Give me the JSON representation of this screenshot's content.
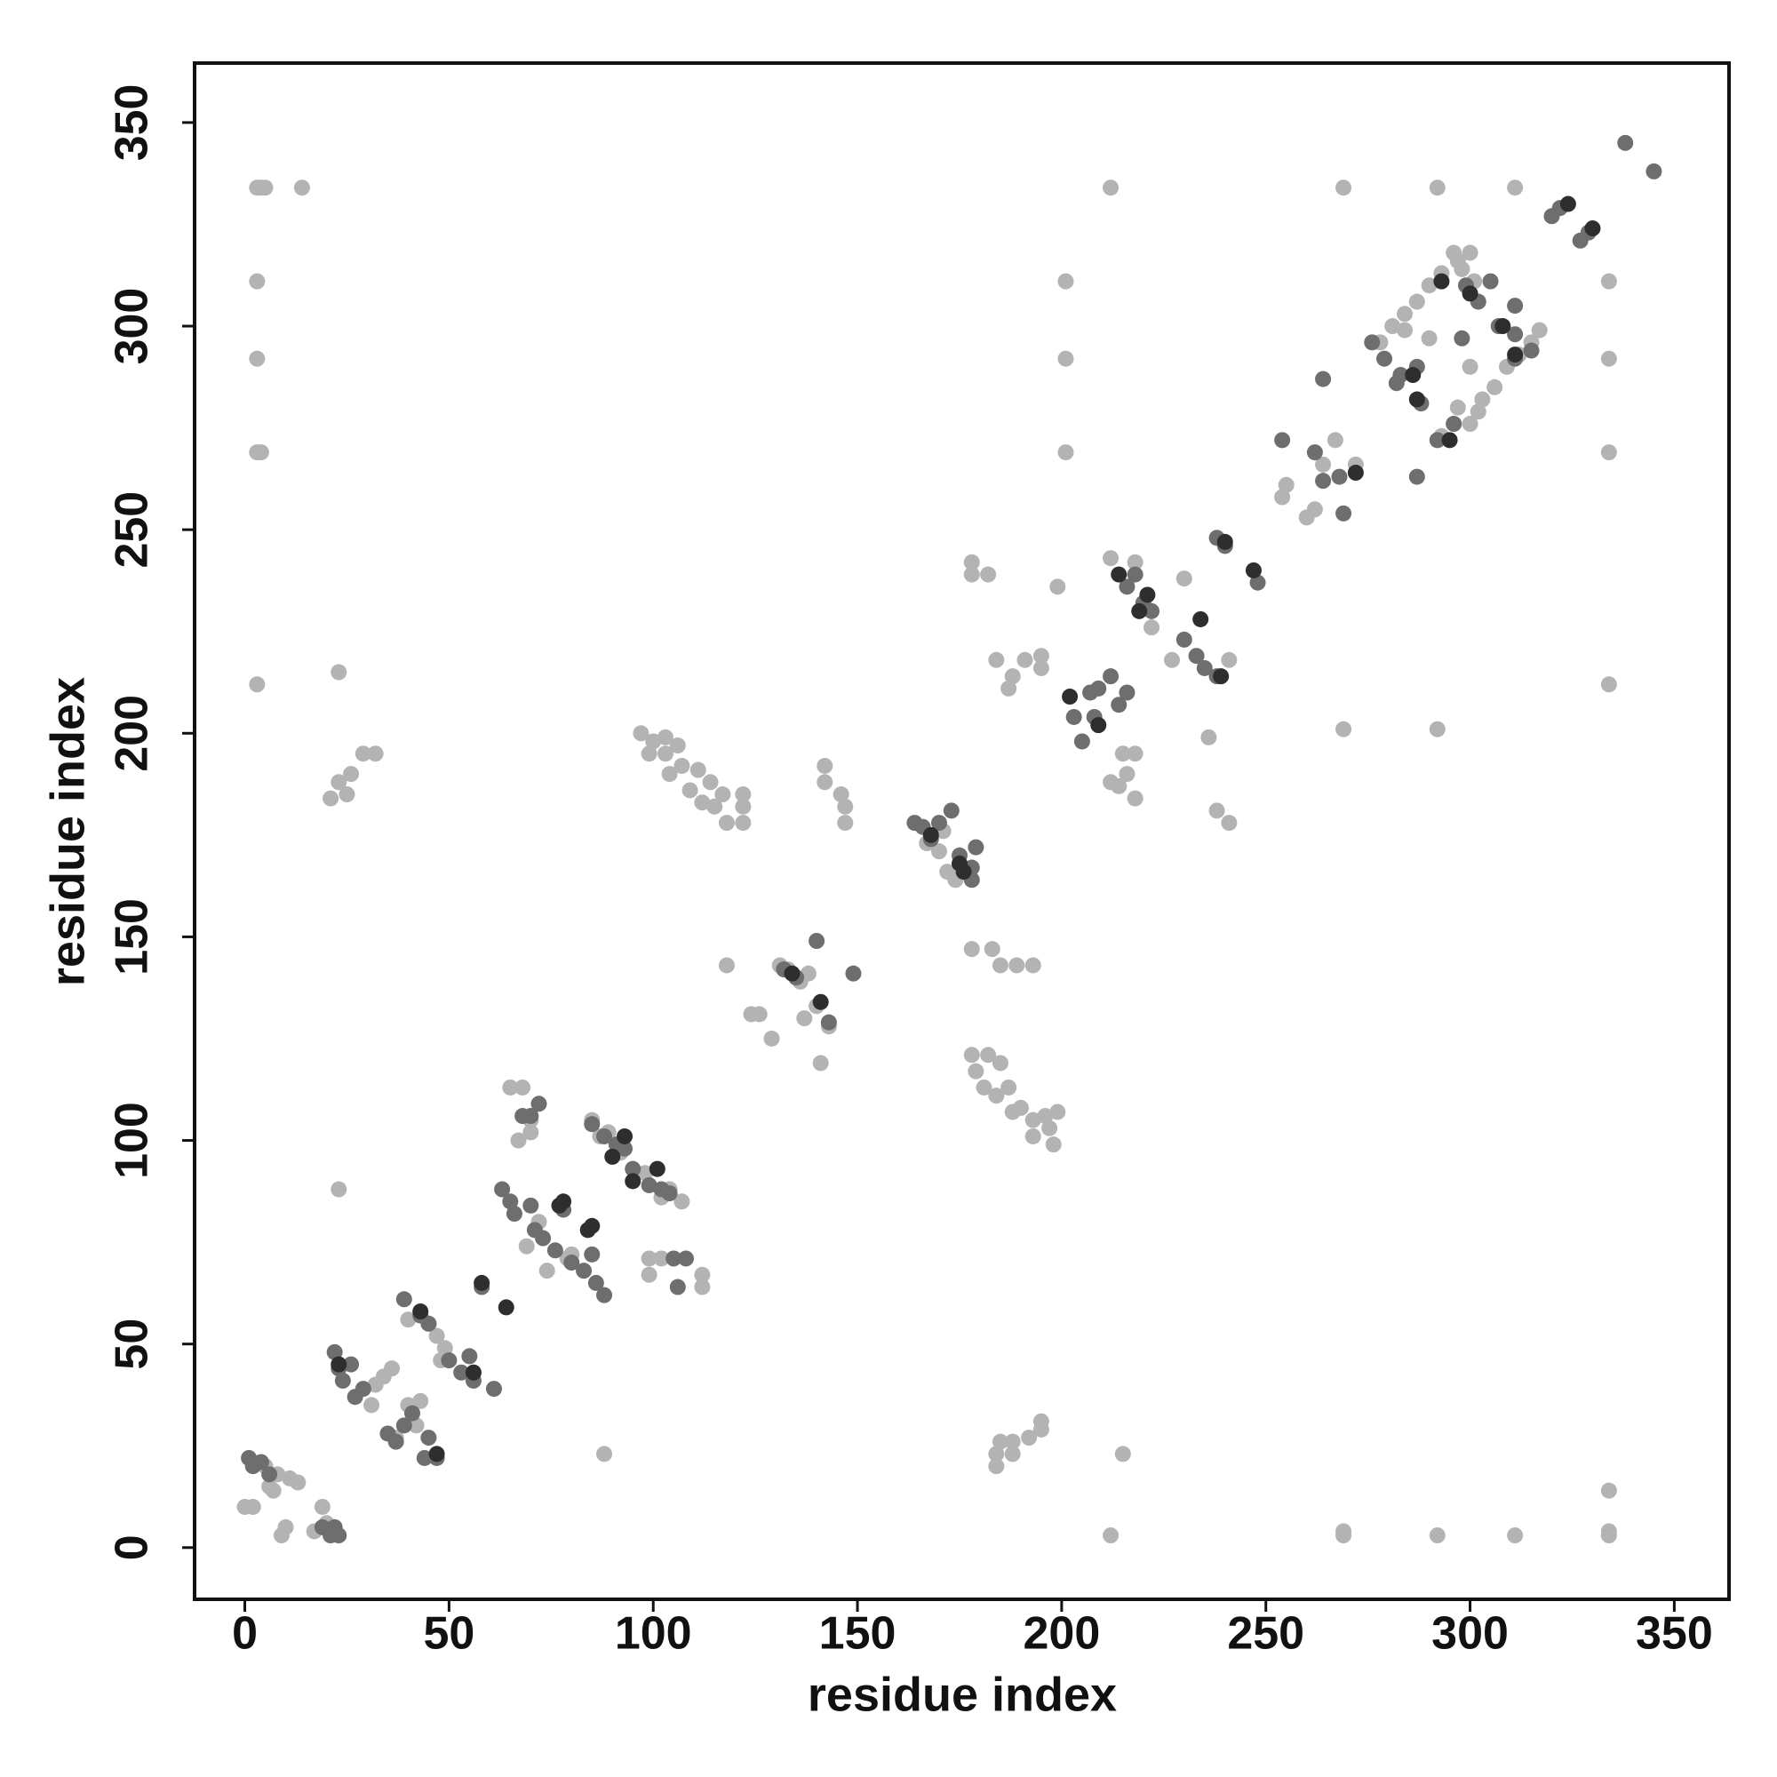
{
  "chart_data": {
    "type": "scatter",
    "x_label": "residue index",
    "y_label": "residue index",
    "xlim": [
      -12.3,
      363.4
    ],
    "ylim": [
      -12.7,
      364.6
    ],
    "xticks": [
      0,
      50,
      100,
      150,
      200,
      250,
      300,
      350
    ],
    "yticks": [
      0,
      50,
      100,
      150,
      200,
      250,
      300,
      350
    ],
    "grid": false,
    "series": [
      {
        "color": "#b3b3b3",
        "x": [
          3,
          4,
          5,
          14,
          3,
          3,
          3,
          4,
          3,
          23,
          23,
          88,
          23,
          21,
          25,
          29,
          32,
          26,
          201,
          201,
          201,
          212,
          269,
          292,
          311,
          334,
          334,
          334,
          334,
          269,
          292,
          334,
          334,
          334,
          311,
          292,
          269,
          269,
          212,
          215,
          184,
          185,
          188,
          192,
          195,
          195,
          184,
          188,
          178,
          183,
          185,
          189,
          193,
          178,
          182,
          185,
          179,
          187,
          190,
          193,
          197,
          198,
          181,
          184,
          188,
          193,
          196,
          199,
          178,
          178,
          182,
          184,
          188,
          191,
          195,
          187,
          195,
          199,
          212,
          212,
          215,
          216,
          218,
          218,
          214,
          241,
          241,
          238,
          236,
          227,
          222,
          230,
          218,
          254,
          255,
          260,
          262,
          264,
          267,
          272,
          278,
          281,
          284,
          287,
          290,
          293,
          297,
          300,
          296,
          298,
          301,
          297,
          300,
          303,
          306,
          309,
          312,
          315,
          317,
          296,
          293,
          300,
          302,
          284,
          290,
          0,
          2,
          9,
          10,
          6,
          8,
          11,
          13,
          19,
          20,
          22,
          17,
          5,
          7,
          31,
          32,
          36,
          34,
          40,
          43,
          42,
          37,
          48,
          49,
          45,
          47,
          40,
          65,
          68,
          70,
          67,
          70,
          72,
          69,
          74,
          79,
          80,
          87,
          85,
          89,
          92,
          98,
          102,
          104,
          107,
          99,
          102,
          99,
          112,
          112,
          97,
          100,
          103,
          107,
          111,
          114,
          117,
          122,
          122,
          122,
          118,
          104,
          109,
          112,
          115,
          99,
          103,
          106,
          142,
          142,
          146,
          147,
          147,
          141,
          143,
          140,
          136,
          131,
          133,
          124,
          126,
          129,
          118,
          138,
          137,
          167,
          170,
          172,
          174,
          171
        ],
        "values": [
          334,
          334,
          334,
          334,
          311,
          292,
          269,
          269,
          212,
          215,
          88,
          23,
          188,
          184,
          185,
          195,
          195,
          190,
          311,
          292,
          269,
          334,
          334,
          334,
          334,
          311,
          292,
          269,
          212,
          201,
          201,
          14,
          4,
          3,
          3,
          3,
          4,
          3,
          3,
          23,
          23,
          26,
          26,
          27,
          29,
          31,
          20,
          23,
          147,
          147,
          143,
          143,
          143,
          121,
          121,
          119,
          117,
          113,
          108,
          105,
          103,
          99,
          113,
          111,
          107,
          101,
          106,
          107,
          242,
          239,
          239,
          218,
          214,
          218,
          219,
          211,
          216,
          236,
          243,
          188,
          195,
          190,
          195,
          184,
          187,
          218,
          178,
          181,
          199,
          218,
          226,
          238,
          242,
          258,
          261,
          253,
          255,
          266,
          272,
          266,
          296,
          300,
          303,
          306,
          310,
          313,
          316,
          318,
          318,
          314,
          311,
          280,
          290,
          282,
          285,
          290,
          293,
          296,
          299,
          276,
          273,
          276,
          279,
          299,
          297,
          10,
          10,
          3,
          5,
          15,
          18,
          17,
          16,
          10,
          6,
          4,
          4,
          20,
          14,
          35,
          40,
          44,
          42,
          35,
          36,
          30,
          27,
          46,
          49,
          55,
          52,
          56,
          113,
          113,
          102,
          100,
          105,
          80,
          74,
          68,
          71,
          72,
          101,
          105,
          102,
          97,
          92,
          86,
          88,
          85,
          71,
          71,
          67,
          67,
          64,
          200,
          198,
          195,
          192,
          191,
          188,
          185,
          185,
          182,
          178,
          178,
          190,
          186,
          183,
          182,
          195,
          199,
          197,
          192,
          188,
          185,
          178,
          182,
          119,
          128,
          133,
          139,
          143,
          142,
          131,
          131,
          125,
          143,
          141,
          130,
          173,
          171,
          166,
          164,
          176
        ]
      },
      {
        "color": "#6e6e6e",
        "x": [
          1,
          2,
          4,
          6,
          19,
          21,
          22,
          23,
          22,
          23,
          26,
          24,
          27,
          29,
          35,
          37,
          39,
          41,
          44,
          45,
          47,
          39,
          43,
          45,
          50,
          53,
          55,
          56,
          61,
          58,
          63,
          65,
          66,
          68,
          70,
          72,
          70,
          71,
          73,
          76,
          78,
          80,
          83,
          85,
          86,
          88,
          85,
          88,
          91,
          93,
          95,
          99,
          102,
          104,
          105,
          106,
          108,
          140,
          149,
          143,
          132,
          135,
          164,
          166,
          168,
          170,
          173,
          178,
          175,
          179,
          178,
          203,
          205,
          207,
          209,
          212,
          214,
          216,
          208,
          216,
          218,
          220,
          222,
          230,
          233,
          235,
          238,
          238,
          240,
          248,
          254,
          262,
          264,
          269,
          264,
          268,
          276,
          279,
          283,
          287,
          288,
          287,
          292,
          296,
          302,
          299,
          305,
          307,
          311,
          311,
          311,
          315,
          320,
          322,
          327,
          329,
          338,
          345,
          298,
          282
        ],
        "values": [
          22,
          20,
          21,
          18,
          5,
          3,
          5,
          3,
          48,
          44,
          45,
          41,
          37,
          39,
          28,
          26,
          30,
          33,
          22,
          27,
          22,
          61,
          57,
          55,
          46,
          43,
          47,
          41,
          39,
          64,
          88,
          85,
          82,
          106,
          106,
          109,
          84,
          78,
          76,
          73,
          83,
          70,
          68,
          72,
          65,
          62,
          104,
          101,
          99,
          98,
          93,
          89,
          88,
          87,
          71,
          64,
          71,
          149,
          141,
          129,
          142,
          140,
          178,
          177,
          174,
          178,
          181,
          167,
          170,
          172,
          164,
          204,
          198,
          210,
          211,
          214,
          207,
          210,
          204,
          236,
          239,
          232,
          230,
          223,
          219,
          216,
          214,
          248,
          246,
          237,
          272,
          269,
          262,
          254,
          287,
          263,
          296,
          292,
          288,
          290,
          281,
          263,
          272,
          276,
          306,
          310,
          311,
          300,
          298,
          305,
          292,
          294,
          327,
          329,
          321,
          323,
          345,
          338,
          297,
          286
        ]
      },
      {
        "color": "#2e2e2e",
        "x": [
          23,
          43,
          47,
          56,
          58,
          64,
          78,
          85,
          77,
          84,
          90,
          95,
          101,
          93,
          134,
          141,
          168,
          175,
          176,
          202,
          209,
          214,
          239,
          221,
          234,
          240,
          247,
          219,
          286,
          287,
          293,
          311,
          295,
          300,
          308,
          324,
          330,
          272
        ],
        "values": [
          45,
          58,
          23,
          43,
          65,
          59,
          85,
          79,
          84,
          78,
          96,
          90,
          93,
          101,
          141,
          134,
          175,
          168,
          166,
          209,
          202,
          239,
          214,
          234,
          228,
          247,
          240,
          230,
          288,
          282,
          311,
          293,
          272,
          308,
          300,
          330,
          324,
          264
        ]
      }
    ]
  }
}
